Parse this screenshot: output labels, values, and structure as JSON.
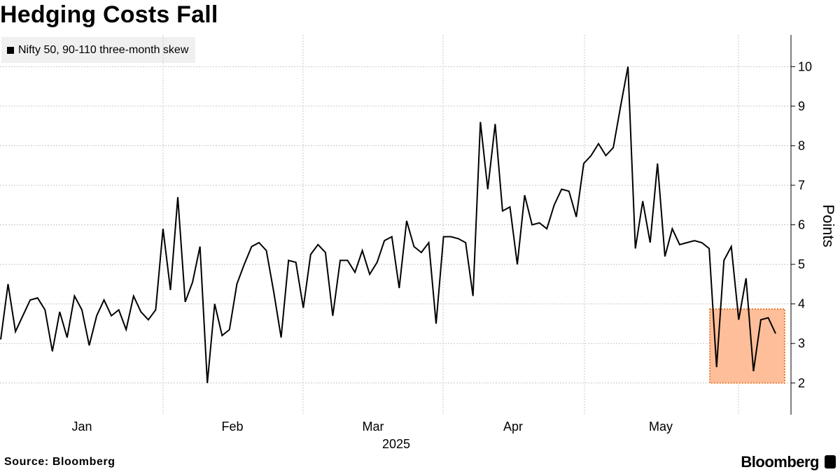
{
  "chart_data": {
    "type": "line",
    "title": "Hedging Costs Fall",
    "series": [
      {
        "name": "Nifty 50, 90-110 three-month skew",
        "color": "#000000",
        "values": [
          3.1,
          4.5,
          3.3,
          3.7,
          4.1,
          4.15,
          3.85,
          2.8,
          3.8,
          3.15,
          4.2,
          3.85,
          2.95,
          3.7,
          4.1,
          3.7,
          3.85,
          3.35,
          4.2,
          3.8,
          3.6,
          3.85,
          5.9,
          4.35,
          6.7,
          4.05,
          4.55,
          5.45,
          2.0,
          4.0,
          3.2,
          3.35,
          4.5,
          5.0,
          5.45,
          5.55,
          5.35,
          4.3,
          3.15,
          5.1,
          5.05,
          3.9,
          5.25,
          5.5,
          5.3,
          3.7,
          5.1,
          5.1,
          4.8,
          5.35,
          4.75,
          5.05,
          5.6,
          5.7,
          4.4,
          6.1,
          5.45,
          5.3,
          5.55,
          3.5,
          5.7,
          5.7,
          5.65,
          5.55,
          4.2,
          8.6,
          6.9,
          8.55,
          6.35,
          6.45,
          5.0,
          6.75,
          6.0,
          6.05,
          5.9,
          6.5,
          6.9,
          6.85,
          6.2,
          7.55,
          7.75,
          8.05,
          7.75,
          7.95,
          9.0,
          10.0,
          5.4,
          6.6,
          5.55,
          7.55,
          5.2,
          5.9,
          5.5,
          5.55,
          5.6,
          5.55,
          5.4,
          2.4,
          5.1,
          5.45,
          3.6,
          4.65,
          2.3,
          3.6,
          3.65,
          3.25
        ]
      }
    ],
    "x_axis": {
      "month_labels": [
        "Jan",
        "Feb",
        "Mar",
        "Apr",
        "May"
      ],
      "year_label": "2025"
    },
    "y_axis": {
      "label": "Points",
      "ticks": [
        2,
        3,
        4,
        5,
        6,
        7,
        8,
        9,
        10
      ],
      "range": [
        1.2,
        10.8
      ],
      "side": "right"
    },
    "grid": true,
    "legend_placement": "top-left",
    "highlight": {
      "description_color": "#fdbe99",
      "border_color": "#e8823b",
      "y_range": [
        2.0,
        3.87
      ]
    }
  },
  "footer": {
    "source": "Source: Bloomberg",
    "brand": "Bloomberg"
  }
}
